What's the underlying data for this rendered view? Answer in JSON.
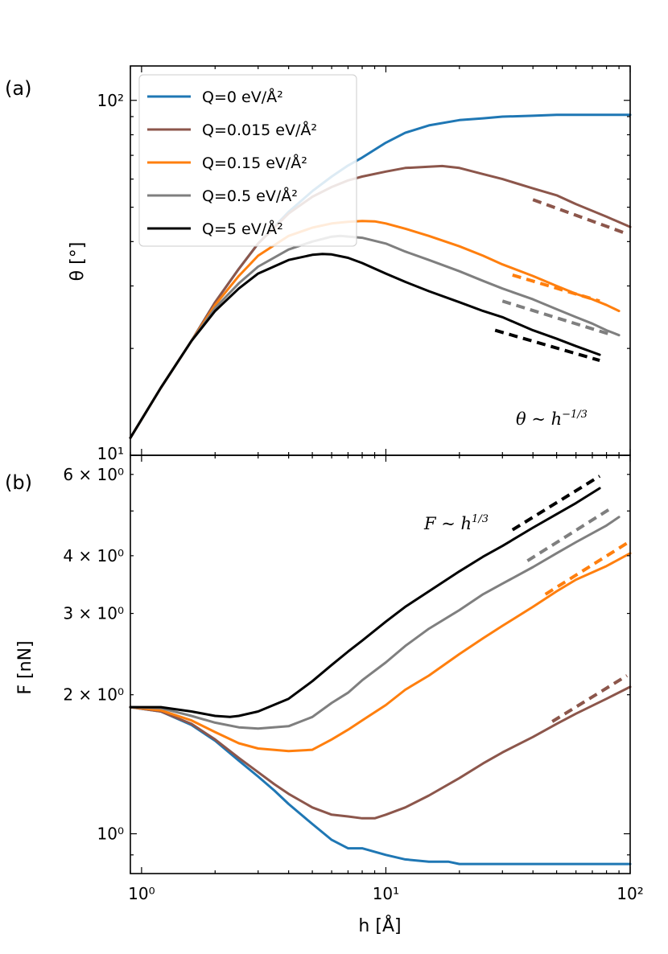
{
  "chart_data": [
    {
      "panel": "(a)",
      "type": "line",
      "xscale": "log",
      "yscale": "log",
      "xlim": [
        0.9,
        100
      ],
      "ylim": [
        10,
        125
      ],
      "ylabel": "θ [°]",
      "yticks": [
        {
          "value": 10,
          "label": "10¹"
        },
        {
          "value": 100,
          "label": "10²"
        }
      ],
      "annotation": "θ ~ h^{-1/3}",
      "annotation_parts": {
        "base": "θ ~ h",
        "exp": "−1/3"
      },
      "legend": [
        {
          "label": "Q=0 eV/Å²",
          "color": "#1f77b4"
        },
        {
          "label": "Q=0.015 eV/Å²",
          "color": "#8c564b"
        },
        {
          "label": "Q=0.15 eV/Å²",
          "color": "#ff7f0e"
        },
        {
          "label": "Q=0.5 eV/Å²",
          "color": "#7f7f7f"
        },
        {
          "label": "Q=5 eV/Å²",
          "color": "#000000"
        }
      ],
      "series": [
        {
          "name": "Q=0 eV/Å²",
          "color": "#1f77b4",
          "x": [
            0.9,
            1.2,
            1.6,
            2,
            2.5,
            3,
            4,
            5,
            6,
            7,
            8,
            10,
            12,
            15,
            20,
            25,
            30,
            40,
            50,
            60,
            80,
            100
          ],
          "y": [
            11.2,
            15.5,
            21,
            27,
            33.5,
            39.5,
            48.5,
            55.5,
            61,
            65.5,
            69,
            76,
            81,
            85,
            88,
            89,
            90,
            90.5,
            91,
            91,
            91,
            91
          ]
        },
        {
          "name": "Q=0.015 eV/Å²",
          "color": "#8c564b",
          "x": [
            0.9,
            1.2,
            1.6,
            2,
            2.5,
            3,
            4,
            5,
            6,
            7,
            8,
            10,
            12,
            15,
            17,
            20,
            25,
            30,
            40,
            50,
            60,
            80,
            100
          ],
          "y": [
            11.2,
            15.5,
            21,
            27,
            33.5,
            39.5,
            48,
            53.5,
            57,
            59.5,
            61,
            63,
            64.5,
            65,
            65.3,
            64.5,
            62,
            60,
            56.5,
            54,
            51,
            47,
            44
          ]
        },
        {
          "name": "Q=0.15 eV/Å²",
          "color": "#ff7f0e",
          "x": [
            0.9,
            1.2,
            1.6,
            2,
            2.5,
            3,
            4,
            5,
            6,
            7,
            8,
            9,
            10,
            12,
            15,
            20,
            25,
            30,
            40,
            50,
            60,
            70,
            80,
            90
          ],
          "y": [
            11.2,
            15.5,
            21,
            26.5,
            32,
            36.5,
            41.5,
            43.8,
            45,
            45.5,
            45.7,
            45.6,
            45,
            43.5,
            41.5,
            38.8,
            36.5,
            34.5,
            32,
            30,
            28.5,
            27.5,
            26.5,
            25.5
          ]
        },
        {
          "name": "Q=0.5 eV/Å²",
          "color": "#7f7f7f",
          "x": [
            0.9,
            1.2,
            1.6,
            2,
            2.5,
            3,
            4,
            5,
            6,
            6.5,
            8,
            10,
            12,
            15,
            20,
            25,
            30,
            40,
            50,
            60,
            70,
            80,
            90
          ],
          "y": [
            11.2,
            15.5,
            21,
            26,
            30.5,
            34,
            38,
            40,
            41.3,
            41.5,
            41,
            39.5,
            37.5,
            35.5,
            33,
            31,
            29.5,
            27.5,
            25.8,
            24.5,
            23.5,
            22.5,
            21.8
          ]
        },
        {
          "name": "Q=5 eV/Å²",
          "color": "#000000",
          "x": [
            0.9,
            1.2,
            1.6,
            2,
            2.5,
            3,
            4,
            5,
            5.5,
            6,
            7,
            8,
            10,
            12,
            15,
            20,
            25,
            30,
            40,
            50,
            60,
            75
          ],
          "y": [
            11.2,
            15.5,
            21,
            25.5,
            29.5,
            32.5,
            35.5,
            36.7,
            36.9,
            36.8,
            36,
            34.8,
            32.5,
            30.8,
            29,
            27,
            25.5,
            24.5,
            22.5,
            21.3,
            20.3,
            19.2
          ]
        }
      ],
      "guides": [
        {
          "color": "#8c564b",
          "x": [
            40,
            95
          ],
          "y": [
            52.5,
            42.3
          ]
        },
        {
          "color": "#ff7f0e",
          "x": [
            33,
            75
          ],
          "y": [
            32.2,
            27.2
          ]
        },
        {
          "color": "#7f7f7f",
          "x": [
            30,
            85
          ],
          "y": [
            27.2,
            21.8
          ]
        },
        {
          "color": "#000000",
          "x": [
            28,
            75
          ],
          "y": [
            22.5,
            18.5
          ]
        }
      ]
    },
    {
      "panel": "(b)",
      "type": "line",
      "xscale": "log",
      "yscale": "log",
      "xlim": [
        0.9,
        100
      ],
      "ylim": [
        0.82,
        6.6
      ],
      "xlabel": "h [Å]",
      "ylabel": "F [nN]",
      "xticks": [
        {
          "value": 1,
          "label": "10⁰"
        },
        {
          "value": 10,
          "label": "10¹"
        },
        {
          "value": 100,
          "label": "10²"
        }
      ],
      "yticks": [
        {
          "value": 1,
          "label": "10⁰"
        },
        {
          "value": 2,
          "label": "2 × 10⁰"
        },
        {
          "value": 3,
          "label": "3 × 10⁰"
        },
        {
          "value": 4,
          "label": "4 × 10⁰"
        },
        {
          "value": 6,
          "label": "6 × 10⁰"
        }
      ],
      "annotation": "F ~ h^{1/3}",
      "annotation_parts": {
        "base": "F ~ h",
        "exp": "1/3"
      },
      "series": [
        {
          "name": "Q=0 eV/Å²",
          "color": "#1f77b4",
          "x": [
            0.9,
            1.2,
            1.6,
            2,
            2.5,
            3,
            3.5,
            4,
            5,
            6,
            7,
            8,
            10,
            12,
            15,
            18,
            20,
            25,
            30,
            40,
            50,
            60,
            80,
            100
          ],
          "y": [
            1.88,
            1.84,
            1.72,
            1.59,
            1.44,
            1.33,
            1.24,
            1.16,
            1.05,
            0.97,
            0.93,
            0.93,
            0.9,
            0.88,
            0.87,
            0.87,
            0.86,
            0.86,
            0.86,
            0.86,
            0.86,
            0.86,
            0.86,
            0.86
          ]
        },
        {
          "name": "Q=0.015 eV/Å²",
          "color": "#8c564b",
          "x": [
            0.9,
            1.2,
            1.6,
            2,
            2.5,
            3,
            3.5,
            4,
            5,
            6,
            7,
            8,
            9,
            10,
            12,
            15,
            20,
            25,
            30,
            40,
            50,
            60,
            80,
            100
          ],
          "y": [
            1.88,
            1.84,
            1.73,
            1.6,
            1.46,
            1.36,
            1.28,
            1.22,
            1.14,
            1.1,
            1.09,
            1.08,
            1.08,
            1.1,
            1.14,
            1.21,
            1.32,
            1.42,
            1.5,
            1.62,
            1.73,
            1.82,
            1.96,
            2.08
          ]
        },
        {
          "name": "Q=0.15 eV/Å²",
          "color": "#ff7f0e",
          "x": [
            0.9,
            1.2,
            1.6,
            2,
            2.5,
            3,
            4,
            5,
            6,
            7,
            8,
            10,
            12,
            15,
            20,
            25,
            30,
            40,
            50,
            60,
            80,
            100
          ],
          "y": [
            1.88,
            1.85,
            1.76,
            1.66,
            1.57,
            1.53,
            1.51,
            1.52,
            1.6,
            1.68,
            1.76,
            1.9,
            2.05,
            2.2,
            2.45,
            2.65,
            2.82,
            3.1,
            3.35,
            3.55,
            3.8,
            4.05
          ]
        },
        {
          "name": "Q=0.5 eV/Å²",
          "color": "#7f7f7f",
          "x": [
            0.9,
            1.2,
            1.6,
            2,
            2.5,
            3,
            4,
            5,
            6,
            7,
            8,
            10,
            12,
            15,
            20,
            25,
            30,
            40,
            50,
            60,
            80,
            90
          ],
          "y": [
            1.88,
            1.87,
            1.8,
            1.74,
            1.7,
            1.69,
            1.71,
            1.79,
            1.92,
            2.02,
            2.15,
            2.35,
            2.55,
            2.78,
            3.05,
            3.3,
            3.48,
            3.78,
            4.05,
            4.28,
            4.65,
            4.85
          ]
        },
        {
          "name": "Q=5 eV/Å²",
          "color": "#000000",
          "x": [
            0.9,
            1.2,
            1.6,
            2,
            2.3,
            2.5,
            3,
            4,
            5,
            6,
            7,
            8,
            10,
            12,
            15,
            20,
            25,
            30,
            40,
            50,
            60,
            75
          ],
          "y": [
            1.88,
            1.88,
            1.84,
            1.8,
            1.79,
            1.8,
            1.84,
            1.96,
            2.14,
            2.32,
            2.48,
            2.62,
            2.88,
            3.1,
            3.35,
            3.7,
            3.98,
            4.2,
            4.6,
            4.92,
            5.2,
            5.6
          ]
        }
      ],
      "guides": [
        {
          "color": "#000000",
          "x": [
            33,
            75
          ],
          "y": [
            4.55,
            5.95
          ]
        },
        {
          "color": "#7f7f7f",
          "x": [
            38,
            85
          ],
          "y": [
            3.9,
            5.1
          ]
        },
        {
          "color": "#ff7f0e",
          "x": [
            45,
            100
          ],
          "y": [
            3.3,
            4.3
          ]
        },
        {
          "color": "#8c564b",
          "x": [
            48,
            97
          ],
          "y": [
            1.75,
            2.2
          ]
        }
      ]
    }
  ]
}
